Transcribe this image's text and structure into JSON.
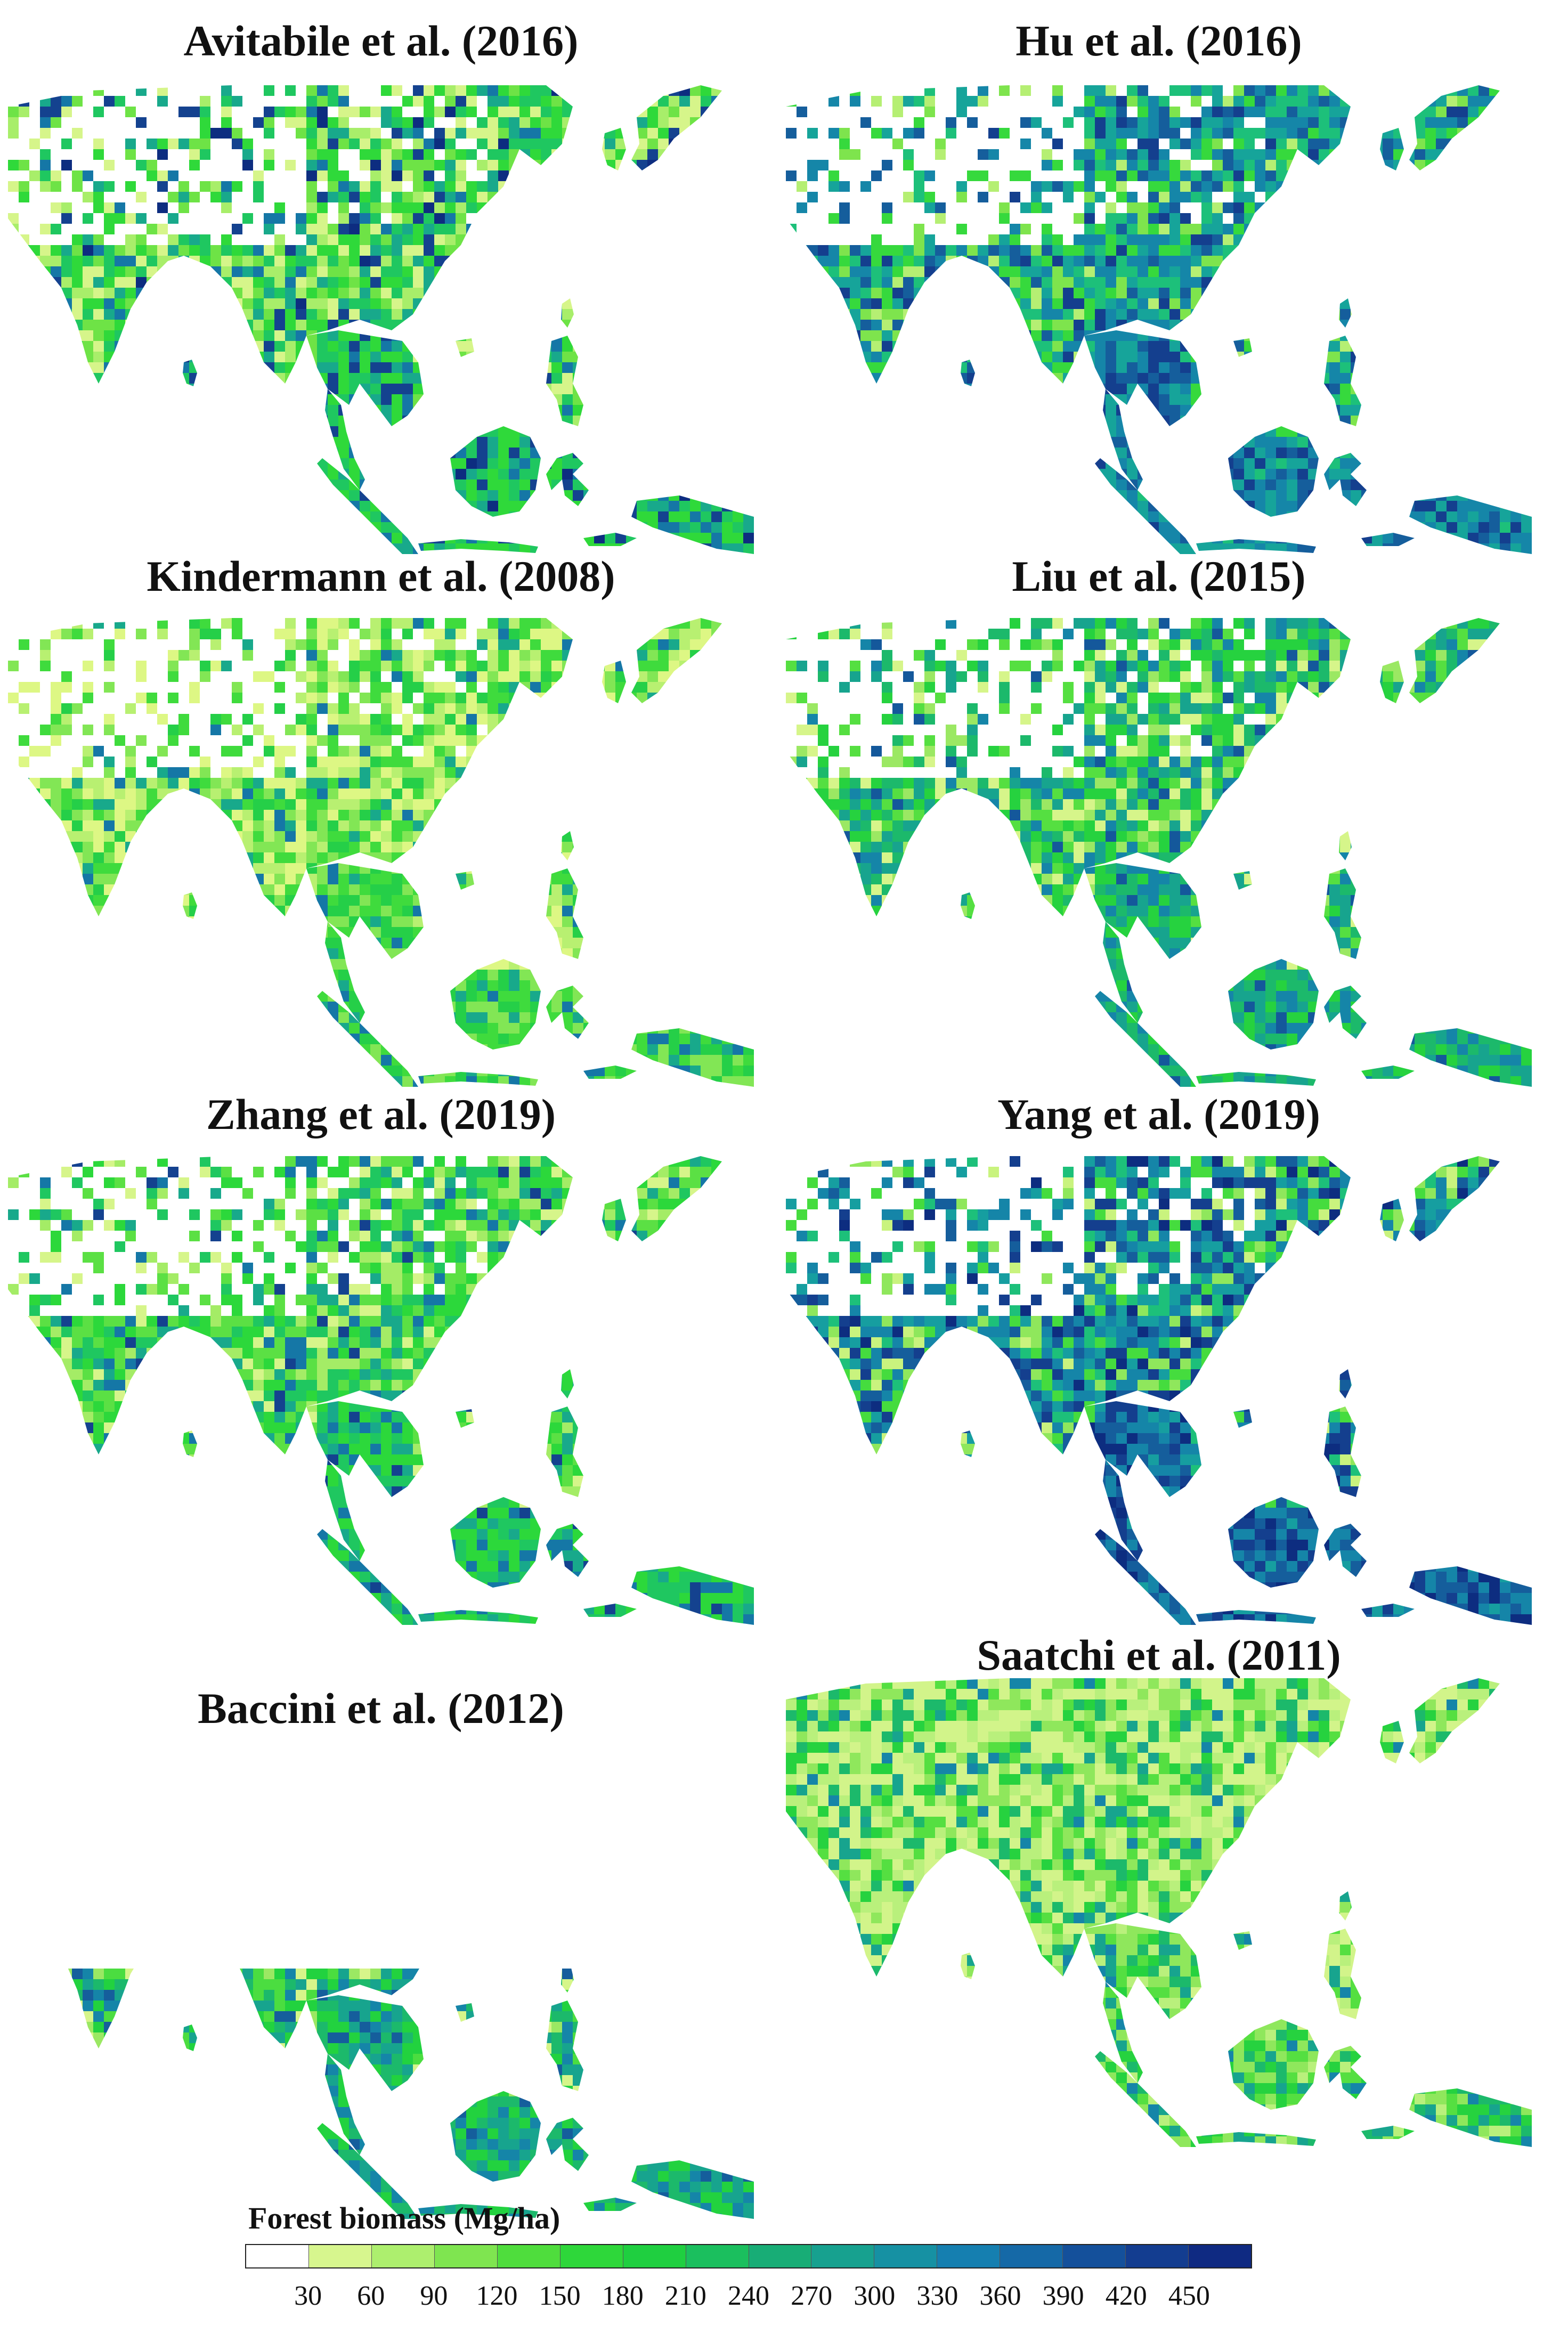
{
  "panels": [
    {
      "title": "Avitabile et al. (2016)",
      "coverage": "full",
      "palette": [
        "#d6f58a",
        "#a8ee6a",
        "#6ee346",
        "#2fd93a",
        "#1fc760",
        "#18a98b",
        "#1577a6",
        "#14428f",
        "#0d2d80"
      ],
      "weights": [
        6,
        4,
        5,
        6,
        5,
        3,
        2,
        2,
        1
      ]
    },
    {
      "title": "Hu et al. (2016)",
      "coverage": "full",
      "palette": [
        "#b5ef73",
        "#7ee44d",
        "#36d93d",
        "#1dc07a",
        "#16a49a",
        "#1586a8",
        "#155e9c",
        "#143f8e"
      ],
      "weights": [
        2,
        3,
        4,
        5,
        5,
        5,
        4,
        2
      ]
    },
    {
      "title": "Kindermann et al. (2008)",
      "coverage": "full",
      "palette": [
        "#ddf784",
        "#b8f071",
        "#82e655",
        "#3fdb3d",
        "#25cf48",
        "#18a98b",
        "#1577a6"
      ],
      "weights": [
        6,
        5,
        5,
        5,
        3,
        2,
        1
      ]
    },
    {
      "title": "Liu et al. (2015)",
      "coverage": "full",
      "palette": [
        "#d6f58a",
        "#9be863",
        "#55df41",
        "#26d23f",
        "#1cb96b",
        "#17a48e",
        "#1585a8",
        "#14589b"
      ],
      "weights": [
        3,
        3,
        4,
        5,
        5,
        4,
        2,
        1
      ]
    },
    {
      "title": "Zhang et al. (2019)",
      "coverage": "full",
      "palette": [
        "#d6f58a",
        "#a4ec66",
        "#5be044",
        "#2cd83b",
        "#1fc760",
        "#18a98b",
        "#1577a6",
        "#14428f"
      ],
      "weights": [
        3,
        4,
        6,
        6,
        4,
        3,
        2,
        1
      ]
    },
    {
      "title": "Yang et al. (2019)",
      "coverage": "full",
      "palette": [
        "#c9f37e",
        "#8fe75c",
        "#45dc3e",
        "#1dc07a",
        "#169ea0",
        "#1585a8",
        "#155e9c",
        "#143f8e",
        "#0d2d80"
      ],
      "weights": [
        2,
        2,
        3,
        3,
        4,
        5,
        4,
        3,
        2
      ]
    },
    {
      "title": "Baccini et al. (2012)",
      "coverage": "tropics",
      "palette": [
        "#d6f58a",
        "#9be863",
        "#4bdd40",
        "#22d23f",
        "#1cb96b",
        "#17a48e",
        "#1585a8",
        "#155e9c"
      ],
      "weights": [
        3,
        3,
        5,
        5,
        4,
        4,
        3,
        1
      ]
    },
    {
      "title": "Saatchi et al. (2011)",
      "coverage": "filled",
      "palette": [
        "#d2f48a",
        "#b9f07c",
        "#8fe75c",
        "#55df41",
        "#26d23f",
        "#1cb96b",
        "#17a48e",
        "#1585a8"
      ],
      "weights": [
        10,
        6,
        4,
        3,
        3,
        3,
        2,
        1
      ]
    }
  ],
  "legend": {
    "title": "Forest biomass (Mg/ha)",
    "colors": [
      "#ffffff",
      "#d7f68e",
      "#adef6e",
      "#7fe550",
      "#4fdd3d",
      "#2ed73a",
      "#1fcf40",
      "#1bbf5e",
      "#18ad76",
      "#17a18f",
      "#1691a3",
      "#157fb0",
      "#1569a7",
      "#14509b",
      "#133d90",
      "#0f2a82"
    ],
    "ticks": [
      "30",
      "60",
      "90",
      "120",
      "150",
      "180",
      "210",
      "240",
      "270",
      "300",
      "330",
      "360",
      "390",
      "420",
      "450"
    ]
  }
}
